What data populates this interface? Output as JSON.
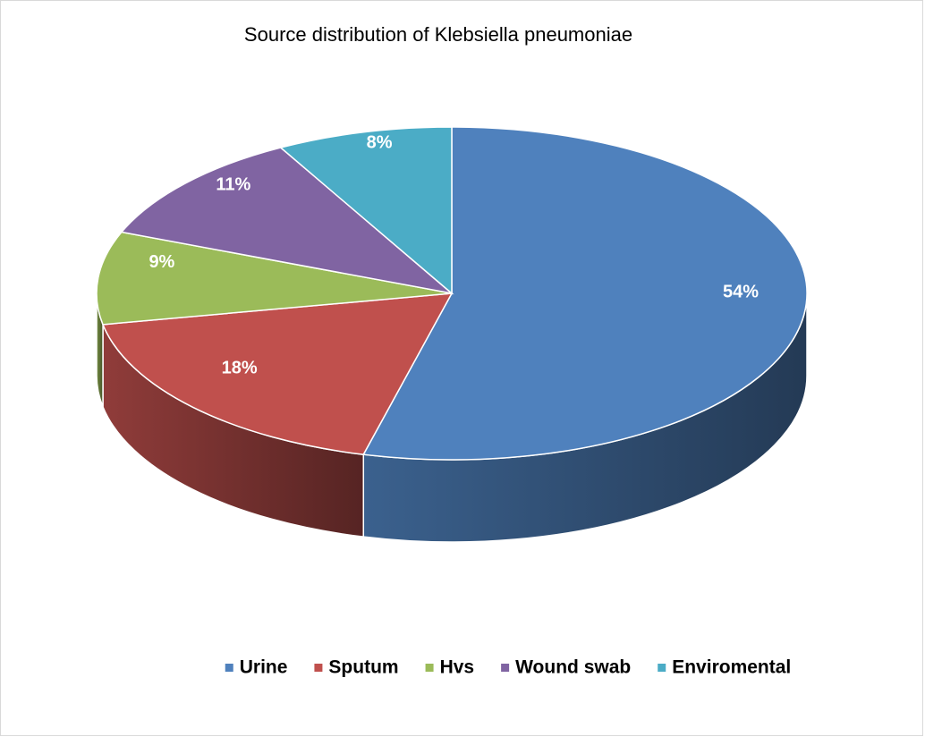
{
  "chart_data": {
    "type": "pie3d",
    "title": "Source distribution of Klebsiella pneumoniae",
    "categories": [
      "Urine",
      "Sputum",
      "Hvs",
      "Wound swab",
      "Enviromental"
    ],
    "values": [
      54,
      18,
      9,
      11,
      8
    ],
    "value_labels": [
      "54%",
      "18%",
      "9%",
      "11%",
      "8%"
    ],
    "colors": [
      "#4f81bd",
      "#c0504d",
      "#9bbb59",
      "#8064a2",
      "#4bacc6"
    ],
    "legend": "bottom"
  }
}
